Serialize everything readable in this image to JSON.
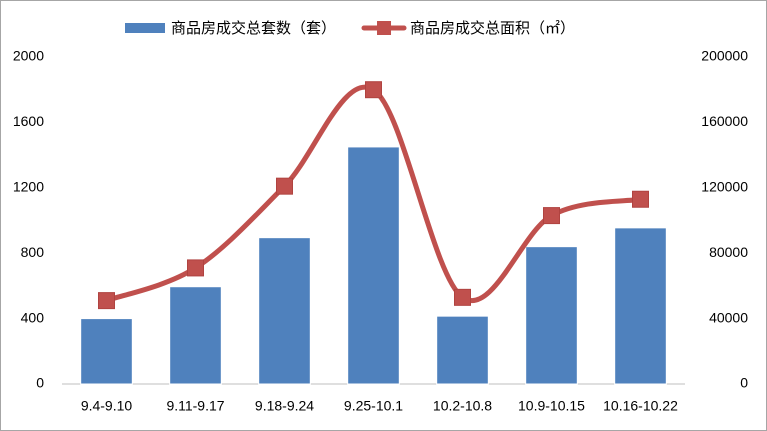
{
  "chart_data": {
    "type": "combo",
    "categories": [
      "9.4-9.10",
      "9.11-9.17",
      "9.18-9.24",
      "9.25-10.1",
      "10.2-10.8",
      "10.9-10.15",
      "10.16-10.22"
    ],
    "series": [
      {
        "name": "商品房成交总套数（套）",
        "type": "bar",
        "color": "#4f81bd",
        "values": [
          400,
          595,
          895,
          1450,
          415,
          840,
          955
        ]
      },
      {
        "name": "商品房成交总面积（㎡）",
        "type": "line",
        "axis": "y2",
        "color": "#c0504d",
        "values": [
          51000,
          71000,
          121000,
          180000,
          53000,
          103000,
          113000
        ]
      }
    ],
    "ylim": [
      0,
      2000
    ],
    "yticks": [
      0,
      400,
      800,
      1200,
      1600,
      2000
    ],
    "y2lim": [
      0,
      200000
    ],
    "y2ticks": [
      0,
      40000,
      80000,
      120000,
      160000,
      200000
    ],
    "grid": false,
    "legend": "top",
    "smooth": true
  }
}
